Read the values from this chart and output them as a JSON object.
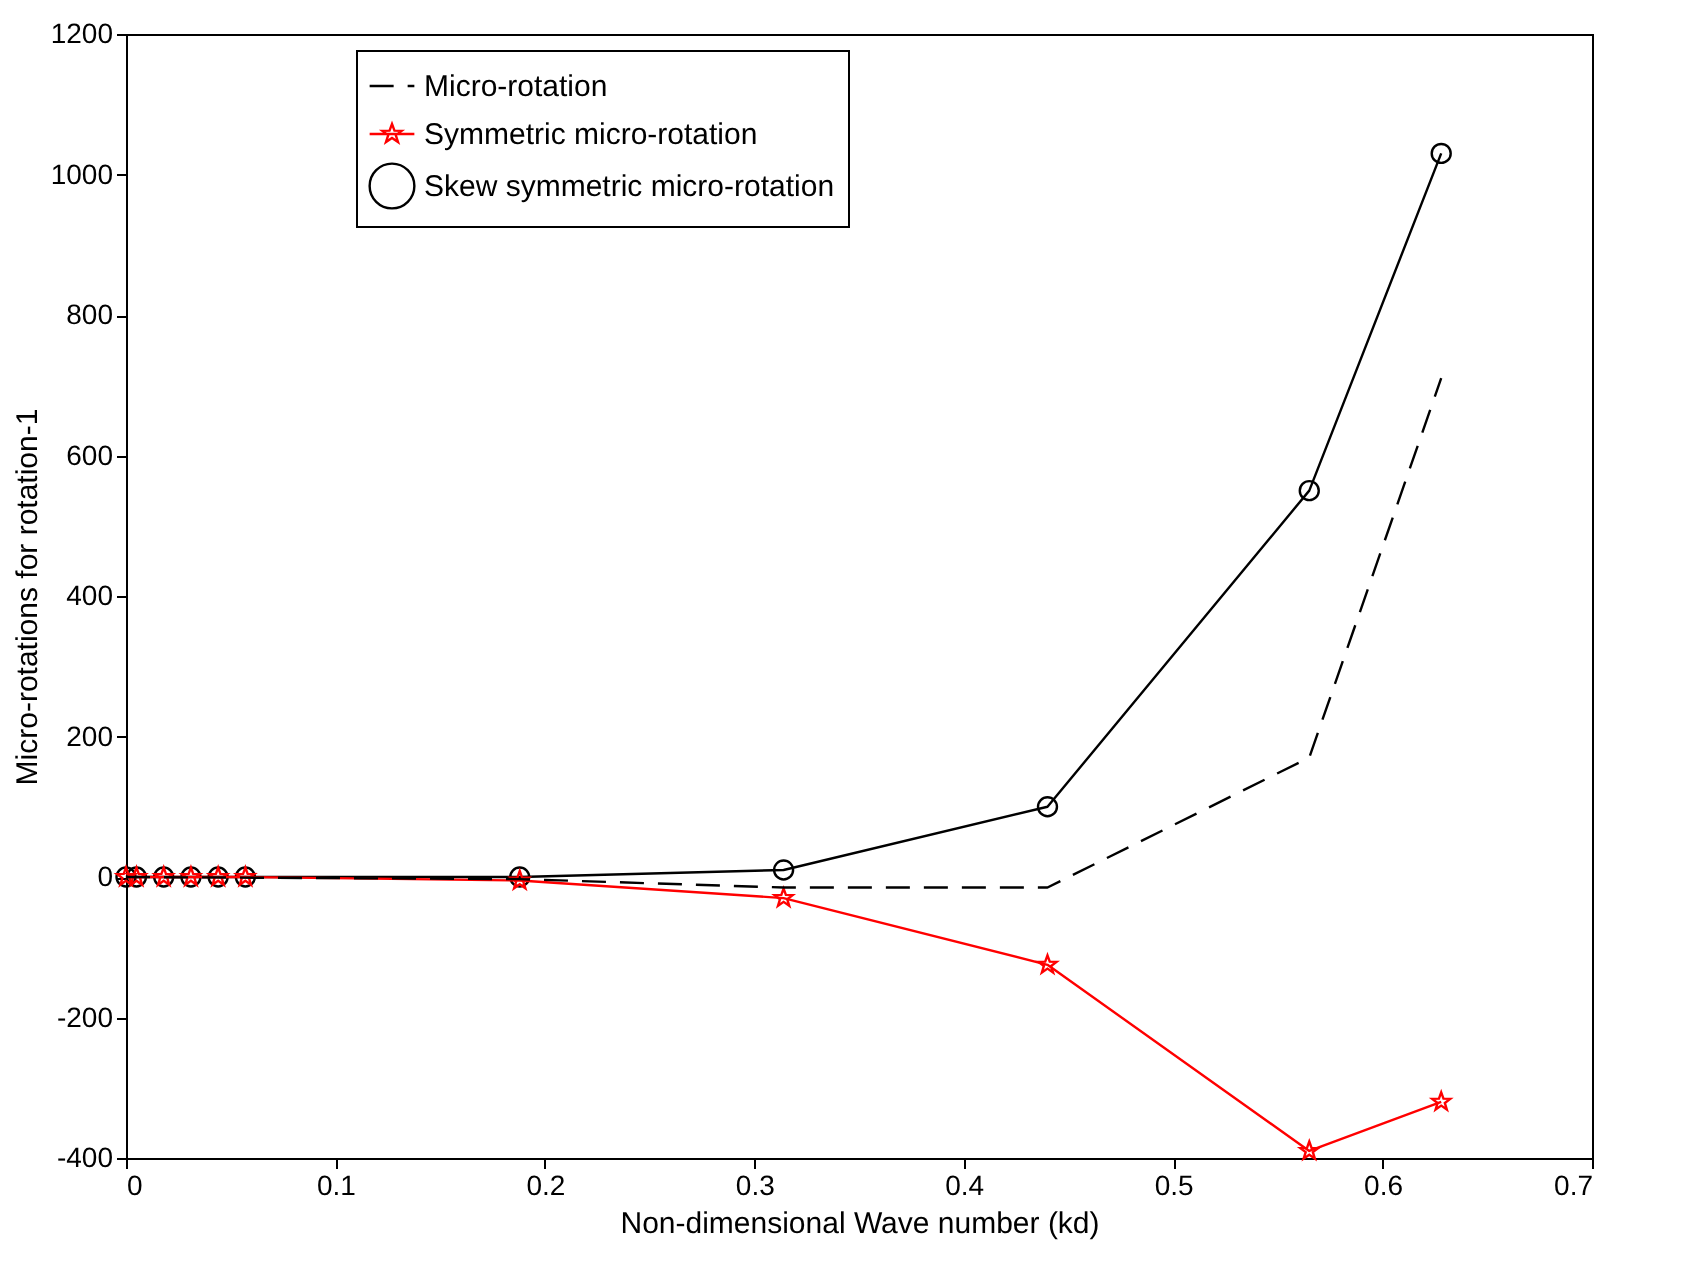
{
  "chart_data": {
    "type": "line",
    "xlabel": "Non-dimensional Wave number (kd)",
    "ylabel": "Micro-rotations for rotation-1",
    "x": [
      0,
      0.005,
      0.018,
      0.031,
      0.044,
      0.057,
      0.188,
      0.314,
      0.44,
      0.565,
      0.628
    ],
    "series": [
      {
        "name": "Micro-rotation",
        "color": "#000000",
        "marker": "none",
        "line_style": "dashed",
        "x": [
          0,
          0.188,
          0.314,
          0.44,
          0.565,
          0.628
        ],
        "values": [
          0,
          -3,
          -15,
          -15,
          170,
          710
        ]
      },
      {
        "name": "Symmetric micro-rotation",
        "color": "#ff0000",
        "marker": "star",
        "line_style": "solid",
        "values": [
          0,
          0,
          0,
          0,
          0,
          0,
          -5,
          -30,
          -125,
          -390,
          -320
        ]
      },
      {
        "name": "Skew symmetric micro-rotation",
        "color": "#000000",
        "marker": "circle",
        "line_style": "solid",
        "values": [
          0,
          0,
          0,
          0,
          0,
          0,
          0,
          10,
          100,
          550,
          1030
        ]
      }
    ],
    "xlim": [
      0,
      0.7
    ],
    "xticks": [
      0,
      0.1,
      0.2,
      0.3,
      0.4,
      0.5,
      0.6,
      0.7
    ],
    "ylim": [
      -400,
      1200
    ],
    "yticks": [
      -400,
      -200,
      0,
      200,
      400,
      600,
      800,
      1000,
      1200
    ],
    "grid": false,
    "legend": "top left"
  }
}
